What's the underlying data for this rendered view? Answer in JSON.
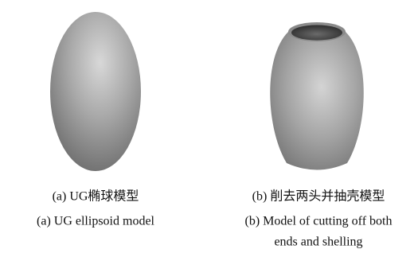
{
  "figure": {
    "panels": [
      {
        "caption_zh": "(a) UG椭球模型",
        "caption_en": [
          "(a) UG ellipsoid model"
        ]
      },
      {
        "caption_zh": "(b) 削去两头并抽壳模型",
        "caption_en": [
          "(b) Model of cutting off both",
          "ends and shelling"
        ]
      }
    ]
  }
}
